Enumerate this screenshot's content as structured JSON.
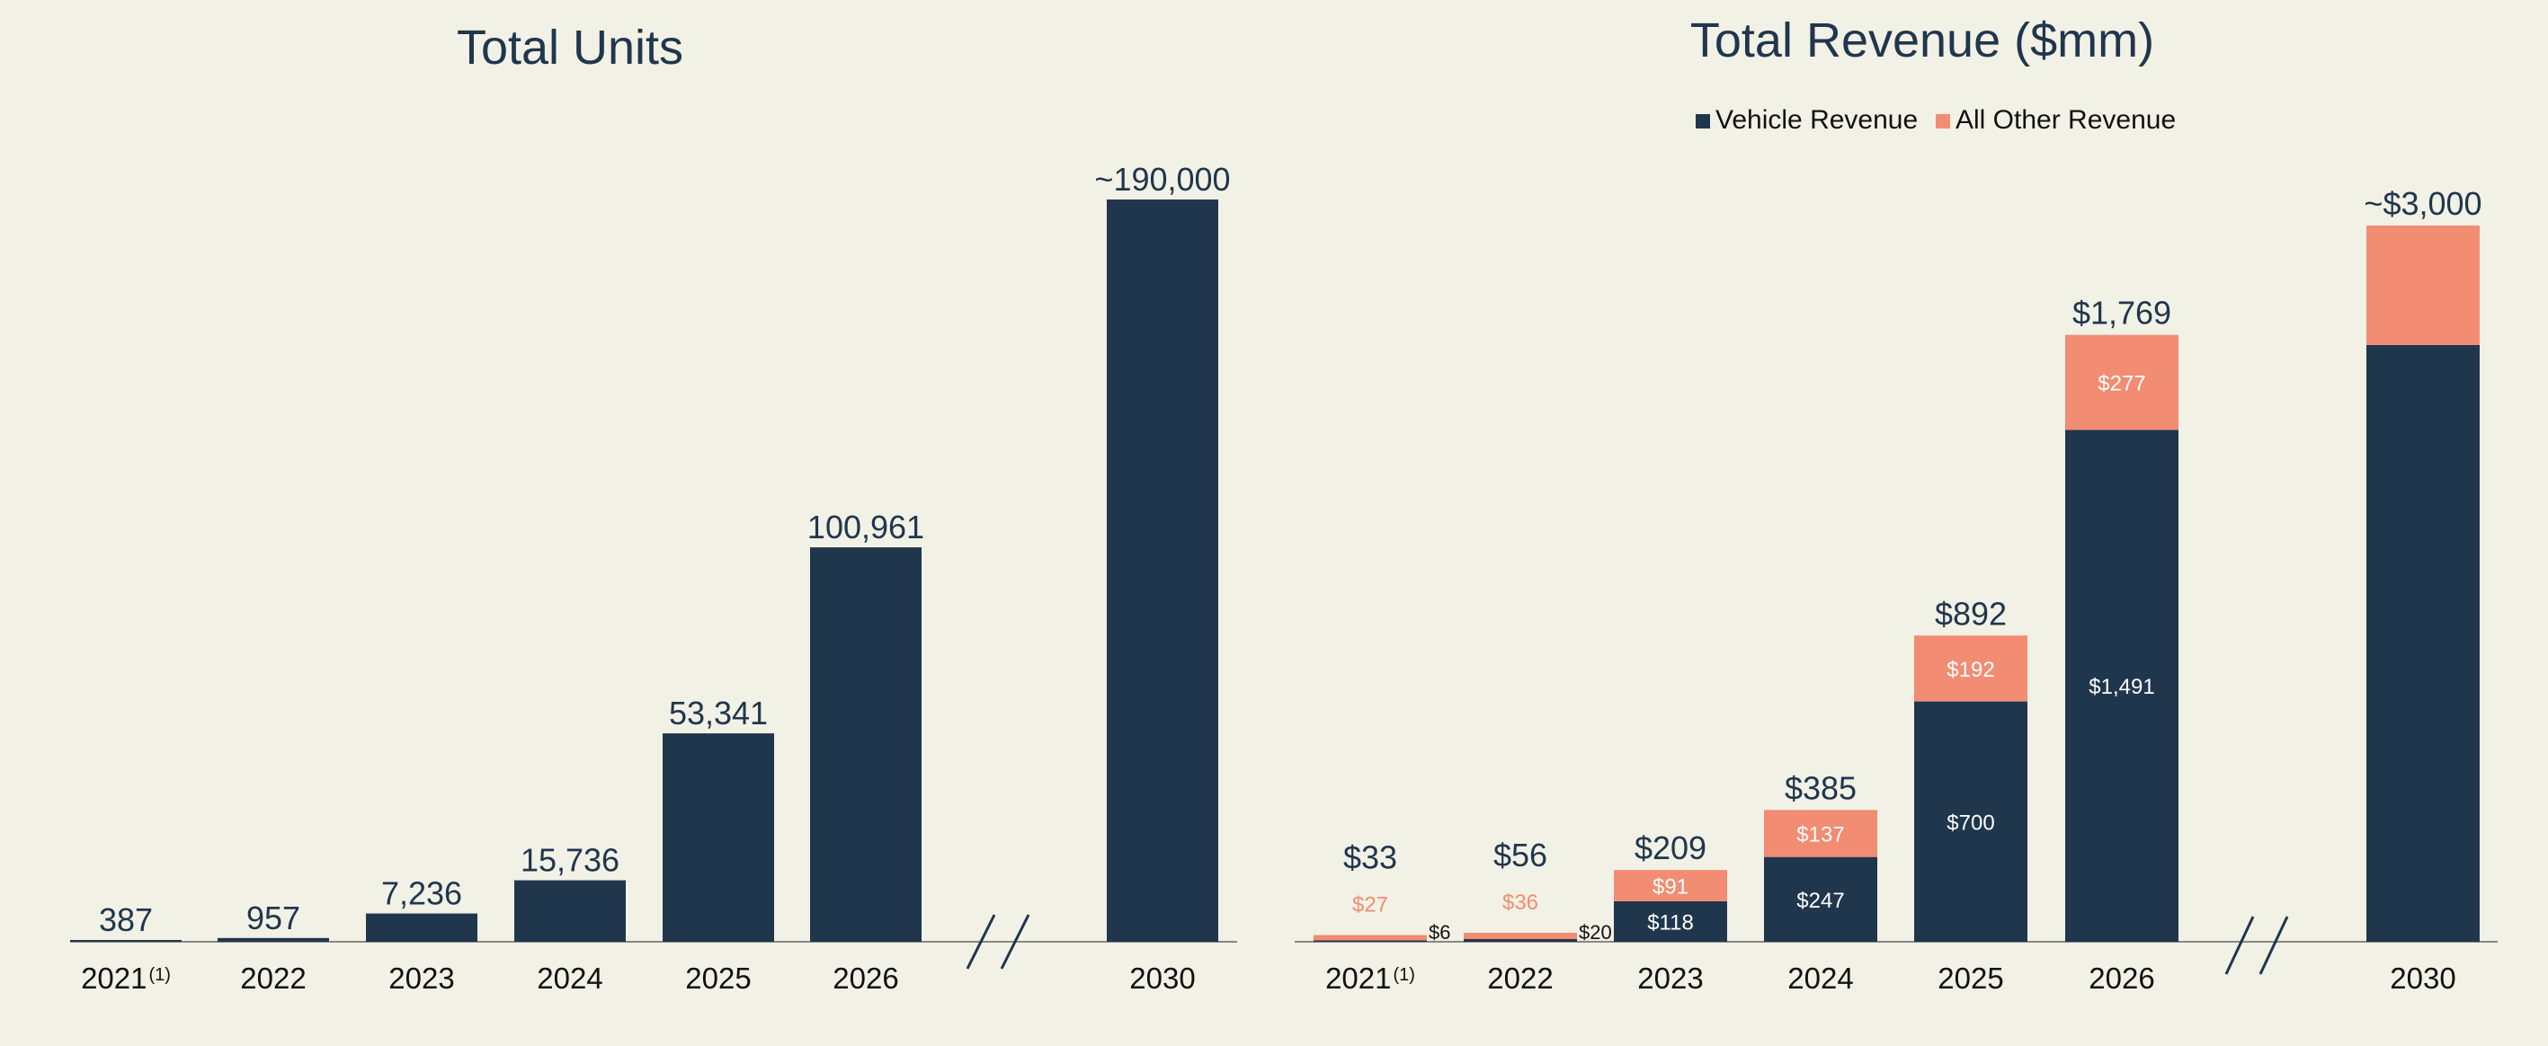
{
  "colors": {
    "background": "#f2f1e6",
    "vehicle": "#20364d",
    "other": "#f28c72",
    "text_dark": "#20364d",
    "axis_label": "#111111",
    "inner_label": "#ffffff",
    "axis_line": "#888888"
  },
  "chart_data": [
    {
      "type": "bar",
      "title": "Total Units",
      "categories": [
        "2021",
        "2022",
        "2023",
        "2024",
        "2025",
        "2026",
        "2030"
      ],
      "category_footnotes": [
        "(1)",
        "",
        "",
        "",
        "",
        "",
        ""
      ],
      "values": [
        387,
        957,
        7236,
        15736,
        53341,
        100961,
        190000
      ],
      "value_labels": [
        "387",
        "957",
        "7,236",
        "15,736",
        "53,341",
        "100,961",
        "~190,000"
      ],
      "axis_break_before": "2030",
      "ylim": [
        0,
        190000
      ],
      "grid": false,
      "legend": "none"
    },
    {
      "type": "bar",
      "stacked": true,
      "title": "Total Revenue ($mm)",
      "categories": [
        "2021",
        "2022",
        "2023",
        "2024",
        "2025",
        "2026",
        "2030"
      ],
      "category_footnotes": [
        "(1)",
        "",
        "",
        "",
        "",
        "",
        ""
      ],
      "series": [
        {
          "name": "Vehicle Revenue",
          "color": "#20364d",
          "values": [
            6,
            20,
            118,
            247,
            700,
            1491,
            2500
          ],
          "labels": [
            "$6",
            "$20",
            "$118",
            "$247",
            "$700",
            "$1,491",
            ""
          ],
          "label_position": [
            "outside-right",
            "outside-right",
            "inside",
            "inside",
            "inside",
            "inside",
            "none"
          ]
        },
        {
          "name": "All Other Revenue",
          "color": "#f28c72",
          "values": [
            27,
            36,
            91,
            137,
            192,
            277,
            500
          ],
          "labels": [
            "$27",
            "$36",
            "$91",
            "$137",
            "$192",
            "$277",
            ""
          ],
          "label_position": [
            "above",
            "above",
            "inside",
            "inside",
            "inside",
            "inside",
            "none"
          ]
        }
      ],
      "totals": [
        33,
        56,
        209,
        385,
        892,
        1769,
        3000
      ],
      "total_labels": [
        "$33",
        "$56",
        "$209",
        "$385",
        "$892",
        "$1,769",
        "~$3,000"
      ],
      "axis_break_before": "2030",
      "ylim": [
        0,
        3000
      ],
      "grid": false,
      "legend": "top-right"
    }
  ]
}
